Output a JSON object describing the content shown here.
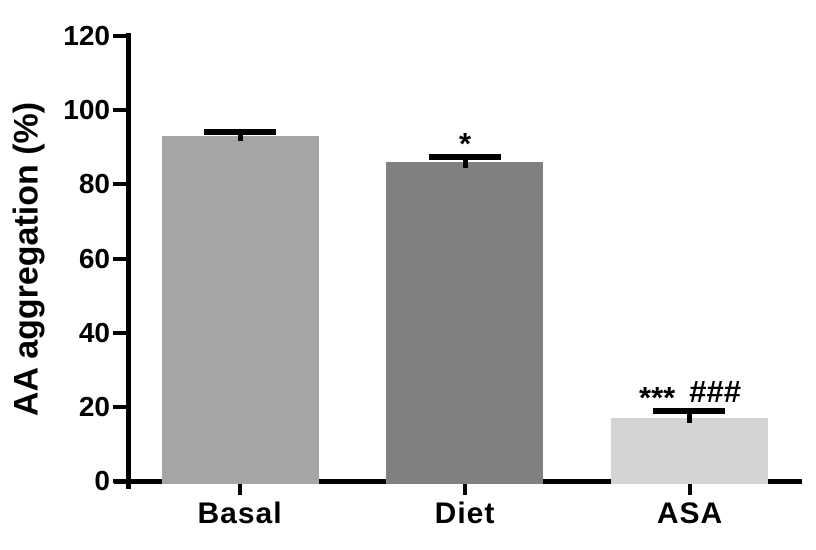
{
  "figure": {
    "background": "#ffffff"
  },
  "chart_data": {
    "type": "bar",
    "title": "",
    "ylabel": "AA aggregation (%)",
    "xlabel": "",
    "categories": [
      "Basal",
      "Diet",
      "ASA"
    ],
    "values": [
      93,
      86,
      17
    ],
    "errors": [
      1.2,
      1.5,
      1.8
    ],
    "error_bars": "upper only, black caps",
    "annotations": [
      [],
      [
        "*"
      ],
      [
        "***",
        "###"
      ]
    ],
    "bar_colors": [
      "#a5a5a5",
      "#808080",
      "#d4d4d4"
    ],
    "ylim": [
      0,
      120
    ],
    "yticks": [
      0,
      20,
      40,
      60,
      80,
      100,
      120
    ],
    "grid": false,
    "legend": null,
    "axis_color": "#000000",
    "text_color": "#000000"
  }
}
